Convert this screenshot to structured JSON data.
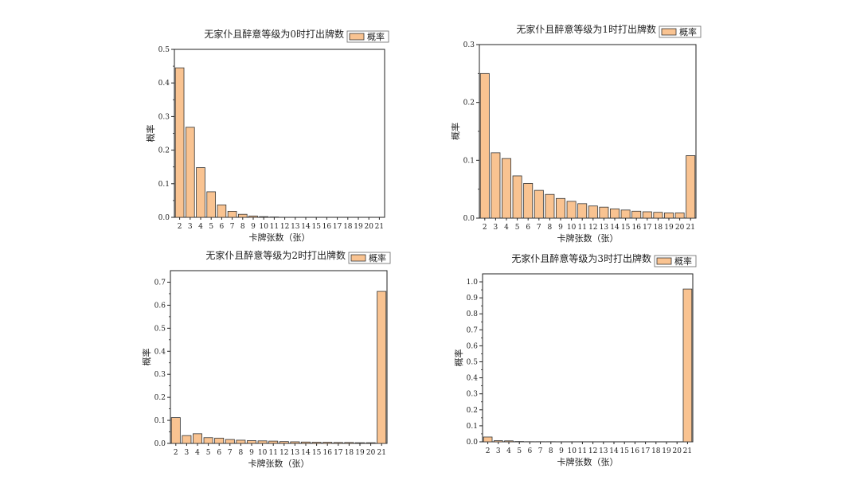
{
  "bar_color": "#F9C391",
  "bar_stroke": "#333333",
  "chart_data": [
    {
      "type": "bar",
      "title": "无家仆且醉意等级为0时打出牌数",
      "legend": "概率",
      "xlabel": "卡牌张数（张）",
      "ylabel": "概率",
      "categories": [
        "2",
        "3",
        "4",
        "5",
        "6",
        "7",
        "8",
        "9",
        "10",
        "11",
        "12",
        "13",
        "14",
        "15",
        "16",
        "17",
        "18",
        "19",
        "20",
        "21"
      ],
      "series": [
        {
          "name": "概率",
          "values": [
            0.445,
            0.268,
            0.148,
            0.076,
            0.037,
            0.018,
            0.009,
            0.004,
            0.002,
            0.001,
            0,
            0,
            0,
            0,
            0,
            0,
            0,
            0,
            0,
            0
          ]
        }
      ],
      "ylim": [
        0,
        0.5
      ],
      "yticks": [
        "0.0",
        "0.1",
        "0.2",
        "0.3",
        "0.4",
        "0.5"
      ]
    },
    {
      "type": "bar",
      "title": "无家仆且醉意等级为1时打出牌数",
      "legend": "概率",
      "xlabel": "卡牌张数（张）",
      "ylabel": "概率",
      "categories": [
        "2",
        "3",
        "4",
        "5",
        "6",
        "7",
        "8",
        "9",
        "10",
        "11",
        "12",
        "13",
        "14",
        "15",
        "16",
        "17",
        "18",
        "19",
        "20",
        "21"
      ],
      "series": [
        {
          "name": "概率",
          "values": [
            0.25,
            0.113,
            0.103,
            0.073,
            0.06,
            0.048,
            0.041,
            0.034,
            0.029,
            0.025,
            0.021,
            0.019,
            0.016,
            0.014,
            0.012,
            0.011,
            0.01,
            0.009,
            0.009,
            0.108
          ]
        }
      ],
      "ylim": [
        0,
        0.3
      ],
      "yticks": [
        "0.0",
        "0.1",
        "0.2",
        "0.3"
      ]
    },
    {
      "type": "bar",
      "title": "无家仆且醉意等级为2时打出牌数",
      "legend": "概率",
      "xlabel": "卡牌张数（张）",
      "ylabel": "概率",
      "categories": [
        "2",
        "3",
        "4",
        "5",
        "6",
        "7",
        "8",
        "9",
        "10",
        "11",
        "12",
        "13",
        "14",
        "15",
        "16",
        "17",
        "18",
        "19",
        "20",
        "21"
      ],
      "series": [
        {
          "name": "概率",
          "values": [
            0.112,
            0.034,
            0.042,
            0.025,
            0.023,
            0.017,
            0.014,
            0.012,
            0.011,
            0.01,
            0.008,
            0.007,
            0.006,
            0.005,
            0.005,
            0.004,
            0.004,
            0.003,
            0.003,
            0.66
          ]
        }
      ],
      "ylim": [
        0,
        0.75
      ],
      "yticks": [
        "0.0",
        "0.1",
        "0.2",
        "0.3",
        "0.4",
        "0.5",
        "0.6",
        "0.7"
      ]
    },
    {
      "type": "bar",
      "title": "无家仆且醉意等级为3时打出牌数",
      "legend": "概率",
      "xlabel": "卡牌张数（张）",
      "ylabel": "概率",
      "categories": [
        "2",
        "3",
        "4",
        "5",
        "6",
        "7",
        "8",
        "9",
        "10",
        "11",
        "12",
        "13",
        "14",
        "15",
        "16",
        "17",
        "18",
        "19",
        "20",
        "21"
      ],
      "series": [
        {
          "name": "概率",
          "values": [
            0.03,
            0.007,
            0.006,
            0.002,
            0.001,
            0.001,
            0.001,
            0,
            0,
            0,
            0,
            0,
            0,
            0,
            0,
            0,
            0,
            0,
            0,
            0.955
          ]
        }
      ],
      "ylim": [
        0,
        1.05
      ],
      "yticks": [
        "0.0",
        "0.1",
        "0.2",
        "0.3",
        "0.4",
        "0.5",
        "0.6",
        "0.7",
        "0.8",
        "0.9",
        "1.0"
      ]
    }
  ]
}
